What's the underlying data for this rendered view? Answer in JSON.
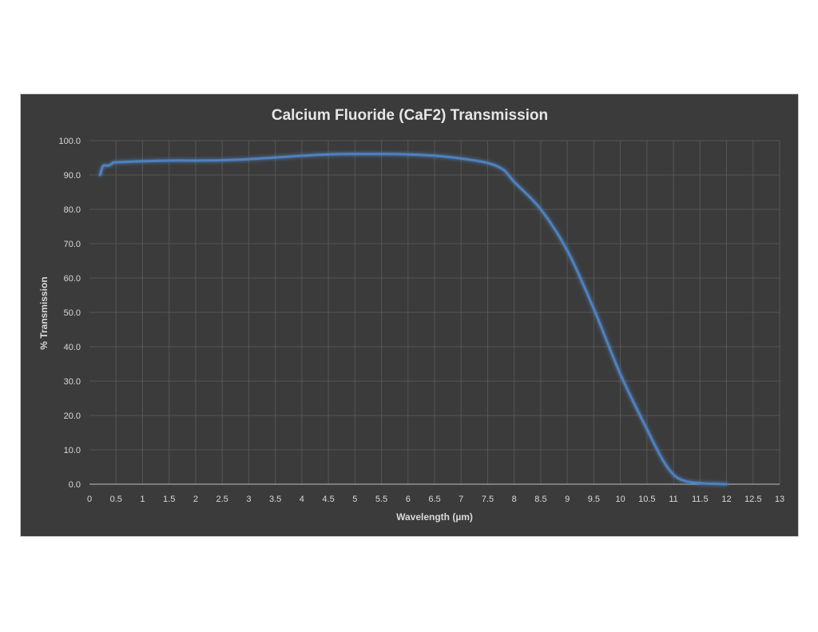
{
  "chart_data": {
    "type": "line",
    "title": "Calcium Fluoride (CaF2) Transmission",
    "xlabel": "Wavelength (µm)",
    "ylabel": "% Transmission",
    "xlim": [
      0,
      13
    ],
    "ylim": [
      0,
      100
    ],
    "x_ticks": [
      "0",
      "0.5",
      "1",
      "1.5",
      "2",
      "2.5",
      "3",
      "3.5",
      "4",
      "4.5",
      "5",
      "5.5",
      "6",
      "6.5",
      "7",
      "7.5",
      "8",
      "8.5",
      "9",
      "9.5",
      "10",
      "10.5",
      "11",
      "11.5",
      "12",
      "12.5",
      "13"
    ],
    "y_ticks": [
      "0.0",
      "10.0",
      "20.0",
      "30.0",
      "40.0",
      "50.0",
      "60.0",
      "70.0",
      "80.0",
      "90.0",
      "100.0"
    ],
    "grid": true,
    "legend": "none",
    "series": [
      {
        "color": "#4f81bd",
        "x": [
          0.2,
          0.25,
          0.3,
          0.35,
          0.4,
          0.45,
          0.5,
          1.0,
          1.5,
          2.0,
          2.5,
          3.0,
          3.5,
          4.0,
          4.5,
          5.0,
          5.5,
          6.0,
          6.5,
          7.0,
          7.5,
          7.8,
          8.0,
          8.5,
          9.0,
          9.5,
          10.0,
          10.5,
          10.8,
          11.0,
          11.2,
          11.5,
          12.0
        ],
        "y": [
          90.0,
          92.5,
          92.8,
          92.7,
          93.0,
          93.6,
          93.7,
          94.0,
          94.2,
          94.2,
          94.3,
          94.6,
          95.1,
          95.6,
          96.0,
          96.1,
          96.1,
          96.0,
          95.6,
          94.8,
          93.5,
          91.5,
          88.0,
          80.0,
          68.0,
          51.0,
          32.0,
          16.0,
          7.0,
          2.8,
          1.0,
          0.3,
          0.0
        ]
      }
    ]
  }
}
